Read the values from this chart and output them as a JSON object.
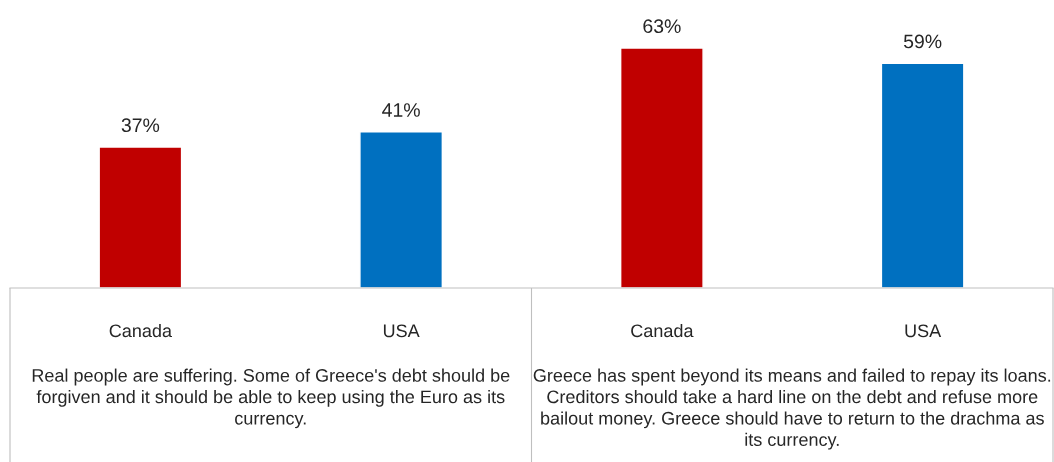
{
  "chart_data": {
    "type": "bar",
    "categories": [
      "Real people are suffering. Some of Greece's debt should be forgiven and it should be able to keep using the Euro as its currency.",
      "Greece has spent beyond its means and failed to repay its loans. Creditors should take a hard line on the debt and refuse more bailout money. Greece should have to return to the drachma as its currency."
    ],
    "series": [
      {
        "name": "Canada",
        "color": "#c00000",
        "values": [
          37,
          63
        ],
        "value_labels": [
          "37%",
          "63%"
        ]
      },
      {
        "name": "USA",
        "color": "#0070c0",
        "values": [
          41,
          59
        ],
        "value_labels": [
          "41%",
          "59%"
        ]
      }
    ]
  }
}
